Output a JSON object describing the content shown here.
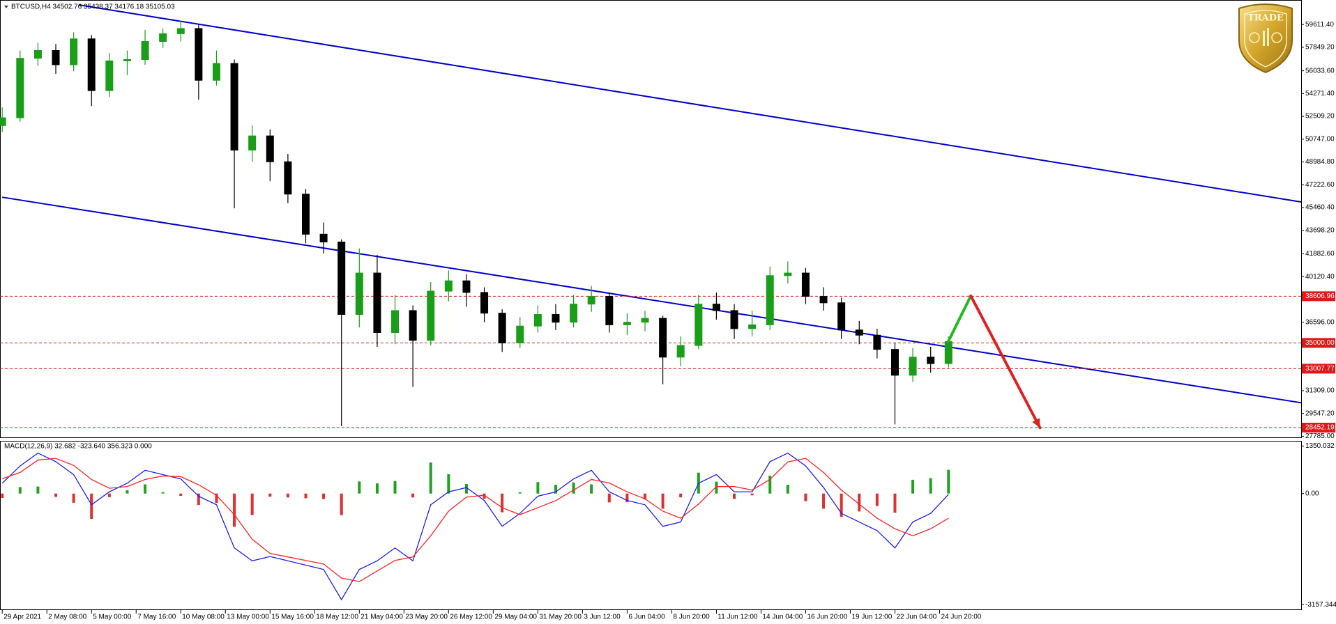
{
  "chart_data": [
    {
      "type": "candlestick",
      "title": "BTCUSD,H4  34502.76 35438.37 34176.18 35105.03",
      "x": [
        0,
        8,
        16,
        24,
        32,
        40,
        48,
        56,
        64,
        72,
        80,
        88,
        96,
        104,
        112,
        120,
        128,
        136,
        144,
        152,
        160,
        168,
        176,
        184,
        192,
        200,
        208,
        216,
        224,
        232,
        240,
        248,
        256,
        264,
        272,
        280,
        288,
        296,
        304,
        312,
        320,
        328,
        336,
        344,
        352,
        360,
        368,
        376,
        384,
        392,
        400,
        408,
        416,
        424
      ],
      "open": [
        51800,
        52400,
        57000,
        57600,
        56500,
        58500,
        54500,
        56800,
        56900,
        58300,
        58900,
        59300,
        55300,
        56600,
        49900,
        51000,
        49000,
        46500,
        43400,
        42800,
        37200,
        40400,
        35800,
        37500,
        35200,
        39000,
        39800,
        38900,
        37300,
        35000,
        36300,
        37200,
        36600,
        38000,
        38600,
        36400,
        36600,
        36900,
        33900,
        34800,
        38000,
        37500,
        36100,
        36400,
        40200,
        40400,
        38600,
        38100,
        36000,
        35600,
        34500,
        32500,
        33900,
        33400
      ],
      "high": [
        53200,
        57600,
        58200,
        58100,
        59000,
        58800,
        57400,
        57600,
        59200,
        59300,
        59900,
        59600,
        57600,
        56900,
        51800,
        51500,
        49600,
        46900,
        44300,
        43000,
        42300,
        41800,
        38700,
        37900,
        39700,
        40600,
        40300,
        39300,
        37600,
        37000,
        37900,
        38000,
        38700,
        39400,
        38900,
        37300,
        37500,
        37100,
        35500,
        38700,
        38900,
        38000,
        37500,
        40900,
        41300,
        40800,
        39300,
        38500,
        36700,
        36100,
        35000,
        34600,
        34700,
        35500
      ],
      "low": [
        51300,
        52100,
        56400,
        55800,
        56000,
        53300,
        54000,
        55700,
        56500,
        57800,
        58300,
        53800,
        54900,
        45400,
        49000,
        47500,
        45800,
        42700,
        41900,
        28570,
        36200,
        34700,
        34900,
        31600,
        34800,
        38200,
        37800,
        36600,
        34300,
        34600,
        35800,
        36000,
        36200,
        37400,
        35800,
        35600,
        35900,
        31800,
        33200,
        34500,
        36800,
        35300,
        35500,
        36000,
        39600,
        38000,
        37500,
        35300,
        34900,
        33800,
        28700,
        32000,
        32700,
        33100
      ],
      "close": [
        52400,
        57000,
        57600,
        56500,
        58500,
        54500,
        56800,
        56900,
        58300,
        58900,
        59300,
        55300,
        56600,
        49900,
        51000,
        49000,
        46500,
        43400,
        42800,
        37200,
        40400,
        35800,
        37500,
        35200,
        39000,
        39800,
        38900,
        37300,
        35000,
        36300,
        37200,
        36600,
        38000,
        38600,
        36400,
        36600,
        36900,
        33900,
        34800,
        38000,
        37500,
        36100,
        36400,
        40200,
        40400,
        38600,
        38100,
        36000,
        35600,
        34500,
        32500,
        33900,
        33400,
        35100
      ],
      "colors": {
        "up": "#1a9e1a",
        "down": "#000000"
      },
      "xlim": [
        -1,
        582
      ],
      "ylim": [
        27700,
        61450
      ],
      "yticks": [
        {
          "value": 59611.4,
          "label": "59611.40"
        },
        {
          "value": 57849.2,
          "label": "57849.20"
        },
        {
          "value": 56033.6,
          "label": "56033.60"
        },
        {
          "value": 54271.4,
          "label": "54271.40"
        },
        {
          "value": 52509.2,
          "label": "52509.20"
        },
        {
          "value": 50747,
          "label": "50747.00"
        },
        {
          "value": 48984.8,
          "label": "48984.80"
        },
        {
          "value": 47222.6,
          "label": "47222.60"
        },
        {
          "value": 45460.4,
          "label": "45460.40"
        },
        {
          "value": 43698.2,
          "label": "43698.20"
        },
        {
          "value": 41882.6,
          "label": "41882.60"
        },
        {
          "value": 40120.4,
          "label": "40120.40"
        },
        {
          "value": 36596,
          "label": "36596.00"
        },
        {
          "value": 31309,
          "label": "31309.00"
        },
        {
          "value": 29547.2,
          "label": "29547.20"
        },
        {
          "value": 27785,
          "label": "27785.00"
        }
      ],
      "xticks": [
        {
          "value": 0,
          "label": "29 Apr 2021"
        },
        {
          "value": 20,
          "label": "2 May 08:00"
        },
        {
          "value": 40,
          "label": "5 May 00:00"
        },
        {
          "value": 60,
          "label": "7 May 16:00"
        },
        {
          "value": 80,
          "label": "10 May 08:00"
        },
        {
          "value": 100,
          "label": "13 May 00:00"
        },
        {
          "value": 120,
          "label": "15 May 16:00"
        },
        {
          "value": 140,
          "label": "18 May 12:00"
        },
        {
          "value": 160,
          "label": "21 May 04:00"
        },
        {
          "value": 180,
          "label": "23 May 20:00"
        },
        {
          "value": 200,
          "label": "26 May 12:00"
        },
        {
          "value": 220,
          "label": "29 May 04:00"
        },
        {
          "value": 240,
          "label": "31 May 20:00"
        },
        {
          "value": 260,
          "label": "3 Jun 12:00"
        },
        {
          "value": 280,
          "label": "6 Jun 04:00"
        },
        {
          "value": 300,
          "label": "8 Jun 20:00"
        },
        {
          "value": 320,
          "label": "11 Jun 12:00"
        },
        {
          "value": 340,
          "label": "14 Jun 04:00"
        },
        {
          "value": 360,
          "label": "16 Jun 20:00"
        },
        {
          "value": 380,
          "label": "19 Jun 12:00"
        },
        {
          "value": 400,
          "label": "22 Jun 04:00"
        },
        {
          "value": 420,
          "label": "24 Jun 20:00"
        }
      ],
      "levels": [
        38606.96,
        {
          "value": 35000,
          "label": "35000.00"
        },
        33007.77,
        28452.19
      ],
      "level_color": "#e01818",
      "channels": [
        {
          "color": "#0000cc",
          "x": [
            34.4,
            582
          ],
          "y": [
            61123,
            45894
          ]
        },
        {
          "color": "#0000cc",
          "x": [
            0,
            582
          ],
          "y": [
            46261,
            30375
          ]
        }
      ],
      "arrows": [
        {
          "color": "#22b922",
          "head": false,
          "x": [
            424,
            434
          ],
          "y": [
            35148,
            38633
          ]
        },
        {
          "color": "#e02020",
          "head": true,
          "x": [
            434,
            465
          ],
          "y": [
            38633,
            28440
          ]
        }
      ]
    },
    {
      "type": "macd",
      "title": "MACD(12,26,9) 32.682 -323.640 356.323 0.000",
      "x": [
        0,
        8,
        16,
        24,
        32,
        40,
        48,
        56,
        64,
        72,
        80,
        88,
        96,
        104,
        112,
        120,
        128,
        136,
        144,
        152,
        160,
        168,
        176,
        184,
        192,
        200,
        208,
        216,
        224,
        232,
        240,
        248,
        256,
        264,
        272,
        280,
        288,
        296,
        304,
        312,
        320,
        328,
        336,
        344,
        352,
        360,
        368,
        376,
        384,
        392,
        400,
        408,
        416,
        424
      ],
      "histogram": [
        -126,
        184,
        200,
        -94,
        -261,
        -718,
        -101,
        94,
        261,
        39,
        -64,
        -324,
        -268,
        -944,
        -611,
        -89,
        -111,
        -133,
        -156,
        -613,
        344,
        289,
        356,
        -111,
        882,
        549,
        271,
        -146,
        -531,
        37,
        326,
        249,
        316,
        261,
        -251,
        -246,
        -168,
        -431,
        -108,
        594,
        339,
        -151,
        -51,
        506,
        250,
        -216,
        -429,
        -663,
        -508,
        -353,
        -544,
        392,
        437,
        675
      ],
      "macd_line": [
        294,
        784,
        1150,
        906,
        539,
        -318,
        49,
        294,
        661,
        539,
        416,
        -74,
        -318,
        -1544,
        -1911,
        -1789,
        -1911,
        -2033,
        -2156,
        -3013,
        -2156,
        -1911,
        -1544,
        -1911,
        -318,
        49,
        171,
        -196,
        -931,
        -563,
        -74,
        49,
        416,
        661,
        49,
        -196,
        -318,
        -931,
        -808,
        294,
        539,
        49,
        49,
        906,
        1150,
        784,
        171,
        -563,
        -808,
        -1053,
        -1544,
        -808,
        -563,
        -25
      ],
      "signal_line": [
        420,
        600,
        950,
        1000,
        800,
        400,
        150,
        200,
        400,
        500,
        480,
        250,
        -50,
        -600,
        -1300,
        -1700,
        -1800,
        -1900,
        -2000,
        -2400,
        -2500,
        -2200,
        -1900,
        -1800,
        -1200,
        -500,
        -100,
        -50,
        -400,
        -600,
        -400,
        -200,
        100,
        400,
        300,
        50,
        -150,
        -500,
        -700,
        -300,
        200,
        200,
        100,
        400,
        900,
        1000,
        600,
        100,
        -300,
        -700,
        -1000,
        -1200,
        -1000,
        -700
      ],
      "colors": {
        "up": "#22a022",
        "down": "#e03030",
        "macd_line": "#1c1cff",
        "signal_line": "#ff2020"
      },
      "xlim": [
        -1,
        582
      ],
      "ylim": [
        -3290,
        1478
      ],
      "yticks": [
        1350.032,
        {
          "value": 0,
          "label": "0.00"
        },
        -3157.344
      ]
    }
  ],
  "logo": {
    "title": "TRADE"
  }
}
